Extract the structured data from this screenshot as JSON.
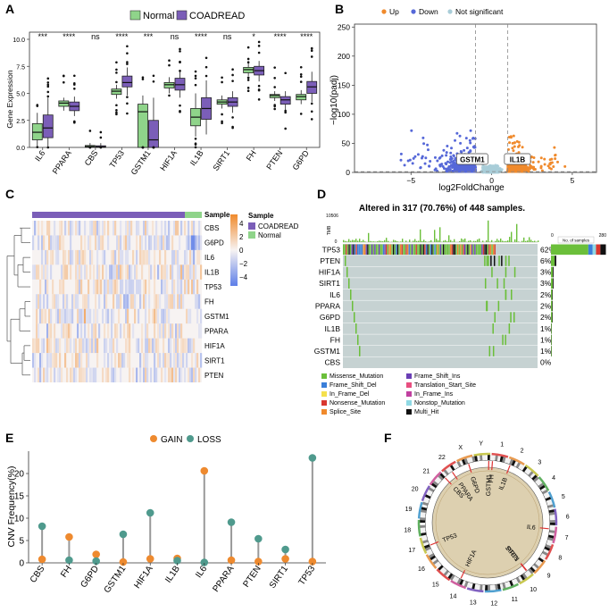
{
  "panel_letters": [
    "A",
    "B",
    "C",
    "D",
    "E",
    "F"
  ],
  "colors": {
    "normal": "#8fd48a",
    "tumor": "#7b5eb8",
    "up": "#f08a2c",
    "down": "#5668d8",
    "ns": "#a9cdd8",
    "gain": "#ee8a2f",
    "loss": "#4f9a8d",
    "heat_high": "#f08a2c",
    "heat_low": "#5d7ee8",
    "missense": "#6bbf3a"
  },
  "chart_data": [
    {
      "type": "box",
      "panel": "A",
      "legend": [
        "Normal",
        "COADREAD"
      ],
      "ylabel": "Gene Expression",
      "ylim": [
        0,
        10
      ],
      "yticks": [
        "0.0",
        "2.5",
        "5.0",
        "7.5",
        "10.0"
      ],
      "categories": [
        "IL6",
        "PPARA",
        "CBS",
        "TP53",
        "GSTM1",
        "HIF1A",
        "IL1B",
        "SIRT1",
        "FH",
        "PTEN",
        "G6PD"
      ],
      "significance": [
        "***",
        "****",
        "ns",
        "****",
        "***",
        "ns",
        "****",
        "ns",
        "*",
        "****",
        "****"
      ],
      "normal": [
        {
          "q1": 0.7,
          "med": 1.4,
          "q3": 2.2,
          "lo": 0.1,
          "hi": 3.2
        },
        {
          "q1": 3.8,
          "med": 4.1,
          "q3": 4.3,
          "lo": 3.4,
          "hi": 4.6
        },
        {
          "q1": 0.02,
          "med": 0.08,
          "q3": 0.18,
          "lo": 0.0,
          "hi": 0.4
        },
        {
          "q1": 4.9,
          "med": 5.2,
          "q3": 5.4,
          "lo": 4.5,
          "hi": 5.8
        },
        {
          "q1": 0.0,
          "med": 3.3,
          "q3": 4.0,
          "lo": 0.0,
          "hi": 4.8
        },
        {
          "q1": 5.5,
          "med": 5.8,
          "q3": 6.0,
          "lo": 5.0,
          "hi": 6.5
        },
        {
          "q1": 2.0,
          "med": 2.8,
          "q3": 3.6,
          "lo": 1.0,
          "hi": 5.0
        },
        {
          "q1": 4.0,
          "med": 4.2,
          "q3": 4.4,
          "lo": 3.6,
          "hi": 4.8
        },
        {
          "q1": 6.9,
          "med": 7.2,
          "q3": 7.4,
          "lo": 6.6,
          "hi": 7.8
        },
        {
          "q1": 4.6,
          "med": 4.8,
          "q3": 4.9,
          "lo": 4.3,
          "hi": 5.2
        },
        {
          "q1": 4.4,
          "med": 4.7,
          "q3": 4.9,
          "lo": 4.0,
          "hi": 5.3
        }
      ],
      "tumor": [
        {
          "q1": 0.9,
          "med": 1.8,
          "q3": 3.0,
          "lo": 0.0,
          "hi": 4.6
        },
        {
          "q1": 3.4,
          "med": 3.8,
          "q3": 4.2,
          "lo": 2.9,
          "hi": 4.7
        },
        {
          "q1": 0.0,
          "med": 0.05,
          "q3": 0.15,
          "lo": 0.0,
          "hi": 0.4
        },
        {
          "q1": 5.6,
          "med": 6.0,
          "q3": 6.6,
          "lo": 4.8,
          "hi": 7.4
        },
        {
          "q1": 0.0,
          "med": 0.7,
          "q3": 2.5,
          "lo": 0.0,
          "hi": 4.6
        },
        {
          "q1": 5.3,
          "med": 5.8,
          "q3": 6.4,
          "lo": 4.6,
          "hi": 7.0
        },
        {
          "q1": 2.6,
          "med": 3.6,
          "q3": 4.6,
          "lo": 1.2,
          "hi": 6.2
        },
        {
          "q1": 3.8,
          "med": 4.2,
          "q3": 4.6,
          "lo": 3.2,
          "hi": 5.2
        },
        {
          "q1": 6.7,
          "med": 7.1,
          "q3": 7.5,
          "lo": 6.1,
          "hi": 8.0
        },
        {
          "q1": 4.0,
          "med": 4.4,
          "q3": 4.7,
          "lo": 3.4,
          "hi": 5.2
        },
        {
          "q1": 5.0,
          "med": 5.6,
          "q3": 6.1,
          "lo": 4.2,
          "hi": 7.0
        }
      ]
    },
    {
      "type": "scatter",
      "panel": "B",
      "legend": [
        "Up",
        "Down",
        "Not significant"
      ],
      "xlabel": "log2FoldChange",
      "ylabel": "−log10(padj)",
      "xlim": [
        -8.5,
        6.5
      ],
      "ylim": [
        0,
        255
      ],
      "xticks": [
        -5,
        0,
        5
      ],
      "yticks": [
        0,
        50,
        100,
        150,
        200,
        250
      ],
      "thresholds": {
        "lfc": 1,
        "padj_line": 1.3
      },
      "annotations": [
        {
          "label": "GSTM1",
          "x": -1.2,
          "y": 8
        },
        {
          "label": "IL1B",
          "x": 1.6,
          "y": 8
        }
      ]
    },
    {
      "type": "heatmap",
      "panel": "C",
      "annotation_label": "Sample",
      "legend_title": "Sample",
      "legend": [
        "COADREAD",
        "Normal"
      ],
      "scale_ticks": [
        4,
        2,
        0,
        -2,
        -4
      ],
      "rows": [
        "CBS",
        "G6PD",
        "IL6",
        "IL1B",
        "TP53",
        "FH",
        "GSTM1",
        "PPARA",
        "HIF1A",
        "SIRT1",
        "PTEN"
      ]
    },
    {
      "type": "oncoplot",
      "panel": "D",
      "title": "Altered in 317 (70.76%) of 448 samples.",
      "tmb_label": "TMB",
      "tmb_max": "10506",
      "tmb_min": "0",
      "bar_axis": [
        "0",
        "280"
      ],
      "bar_axis_label": "No. of samples",
      "genes": [
        "TP53",
        "PTEN",
        "HIF1A",
        "SIRT1",
        "IL6",
        "PPARA",
        "G6PD",
        "IL1B",
        "FH",
        "GSTM1",
        "CBS"
      ],
      "percents": [
        "62%",
        "6%",
        "3%",
        "3%",
        "2%",
        "2%",
        "2%",
        "1%",
        "1%",
        "1%",
        "0%"
      ],
      "percent_values": [
        62,
        6,
        3,
        3,
        2,
        2,
        2,
        1,
        1,
        1,
        0
      ],
      "legend": [
        {
          "name": "Missense_Mutation",
          "color": "#6bbf3a"
        },
        {
          "name": "Frame_Shift_Ins",
          "color": "#6a3fb5"
        },
        {
          "name": "Frame_Shift_Del",
          "color": "#3b7fd9"
        },
        {
          "name": "Translation_Start_Site",
          "color": "#e84f80"
        },
        {
          "name": "In_Frame_Del",
          "color": "#f4e04d"
        },
        {
          "name": "In_Frame_Ins",
          "color": "#c040a0"
        },
        {
          "name": "Nonsense_Mutation",
          "color": "#d9372f"
        },
        {
          "name": "Nonstop_Mutation",
          "color": "#8fd9e4"
        },
        {
          "name": "Splice_Site",
          "color": "#f08a2c"
        },
        {
          "name": "Multi_Hit",
          "color": "#111111"
        }
      ]
    },
    {
      "type": "lollipop",
      "panel": "E",
      "legend": [
        "GAIN",
        "LOSS"
      ],
      "ylabel": "CNV Frequency(%)",
      "ylim": [
        0,
        25
      ],
      "yticks": [
        0,
        5,
        10,
        15,
        20
      ],
      "categories": [
        "CBS",
        "FH",
        "G6PD",
        "GSTM1",
        "HIF1A",
        "IL1B",
        "IL6",
        "PPARA",
        "PTEN",
        "SIRT1",
        "TP53"
      ],
      "gain": [
        0.8,
        5.8,
        1.9,
        0.2,
        0.9,
        1.0,
        20.6,
        0.6,
        0.3,
        0.9,
        0.3
      ],
      "loss": [
        8.2,
        0.6,
        0.4,
        6.4,
        11.2,
        0.5,
        0.1,
        9.1,
        5.4,
        3.0,
        23.5
      ]
    },
    {
      "type": "circos",
      "panel": "F",
      "chromosomes": [
        "1",
        "2",
        "3",
        "4",
        "5",
        "6",
        "7",
        "8",
        "9",
        "10",
        "11",
        "12",
        "13",
        "14",
        "15",
        "16",
        "17",
        "18",
        "19",
        "20",
        "21",
        "22",
        "X",
        "Y"
      ],
      "genes": [
        {
          "name": "IL1B",
          "chr": "2"
        },
        {
          "name": "FH",
          "chr": "1"
        },
        {
          "name": "GSTM1",
          "chr": "1"
        },
        {
          "name": "G6PD",
          "chr": "X"
        },
        {
          "name": "PPARA",
          "chr": "22"
        },
        {
          "name": "CBS",
          "chr": "21"
        },
        {
          "name": "TP53",
          "chr": "17"
        },
        {
          "name": "HIF1A",
          "chr": "14"
        },
        {
          "name": "PTEN",
          "chr": "10"
        },
        {
          "name": "SIRT1",
          "chr": "10"
        },
        {
          "name": "IL6",
          "chr": "7"
        }
      ]
    }
  ]
}
